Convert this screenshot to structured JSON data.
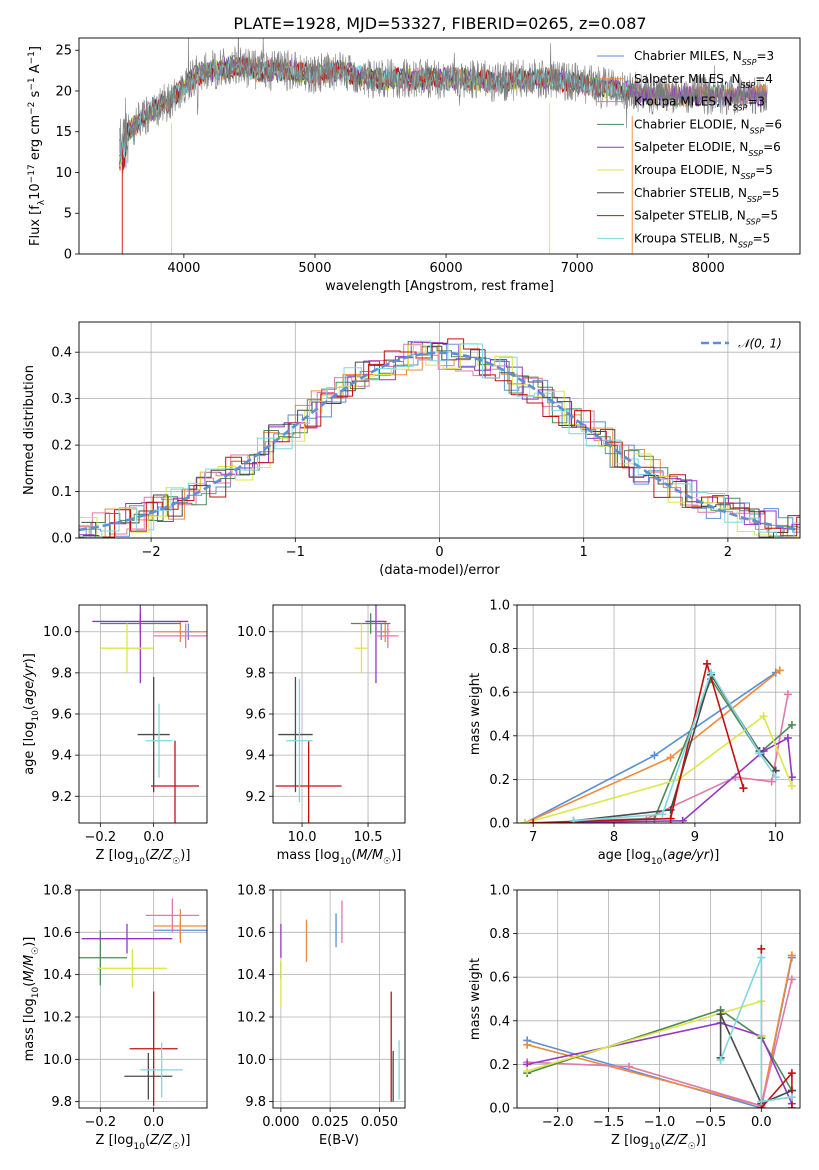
{
  "figure_title": "PLATE=1928, MJD=53327, FIBERID=0265, z=0.087",
  "colors": {
    "Chabrier MILES": "#5b8fd6",
    "Salpeter MILES": "#f08a3c",
    "Kroupa MILES": "#e07aa9",
    "Chabrier ELODIE": "#4f8a55",
    "Salpeter ELODIE": "#9437c8",
    "Kroupa ELODIE": "#dde64a",
    "Chabrier STELIB": "#4a4a4a",
    "Salpeter STELIB": "#c41010",
    "Kroupa STELIB": "#7fd8e0",
    "data": "#808080",
    "gaussian": "#5b8fd6"
  },
  "chart_data": [
    {
      "id": "spectrum",
      "type": "line",
      "title": "PLATE=1928, MJD=53327, FIBERID=0265, z=0.087",
      "xlabel": "wavelength [Angstrom, rest frame]",
      "ylabel": "Flux [f_λ10⁻¹⁷ erg cm⁻² s⁻¹ A⁻¹]",
      "xlim": [
        3200,
        8700
      ],
      "ylim": [
        0,
        26.5
      ],
      "xticks": [
        4000,
        5000,
        6000,
        7000,
        8000
      ],
      "yticks": [
        0,
        5,
        10,
        15,
        20,
        25
      ],
      "grid": false,
      "legend_position": "top-right",
      "data_curve": {
        "x": [
          3510,
          3600,
          3700,
          3800,
          3900,
          4000,
          4100,
          4200,
          4400,
          4600,
          4800,
          5000,
          5200,
          5400,
          5600,
          5800,
          6000,
          6200,
          6400,
          6600,
          6800,
          7000,
          7200,
          7400,
          7600,
          7800,
          8000,
          8200,
          8400,
          8700
        ],
        "y": [
          14,
          15.5,
          17,
          18,
          19,
          20.5,
          22,
          22.5,
          23,
          22.5,
          22.5,
          22,
          22.5,
          21.5,
          21.5,
          21.5,
          21.5,
          21.5,
          21,
          21.5,
          21.5,
          21,
          20.5,
          20,
          19.5,
          19.5,
          19.5,
          19.5,
          19.5,
          19.5
        ]
      },
      "series": [
        {
          "name": "Chabrier MILES, N_SSP=3",
          "label_main": "Chabrier MILES, N",
          "label_sub": "SSP",
          "label_end": "=3",
          "color_key": "Chabrier MILES"
        },
        {
          "name": "Salpeter MILES, N_SSP=4",
          "label_main": "Salpeter MILES, N",
          "label_sub": "SSP",
          "label_end": "=4",
          "color_key": "Salpeter MILES"
        },
        {
          "name": "Kroupa MILES, N_SSP=3",
          "label_main": "Kroupa MILES, N",
          "label_sub": "SSP",
          "label_end": "=3",
          "color_key": "Kroupa MILES"
        },
        {
          "name": "Chabrier ELODIE, N_SSP=6",
          "label_main": "Chabrier ELODIE, N",
          "label_sub": "SSP",
          "label_end": "=6",
          "color_key": "Chabrier ELODIE"
        },
        {
          "name": "Salpeter ELODIE, N_SSP=6",
          "label_main": "Salpeter ELODIE, N",
          "label_sub": "SSP",
          "label_end": "=6",
          "color_key": "Salpeter ELODIE"
        },
        {
          "name": "Kroupa ELODIE, N_SSP=5",
          "label_main": "Kroupa ELODIE, N",
          "label_sub": "SSP",
          "label_end": "=5",
          "color_key": "Kroupa ELODIE"
        },
        {
          "name": "Chabrier STELIB, N_SSP=5",
          "label_main": "Chabrier STELIB, N",
          "label_sub": "SSP",
          "label_end": "=5",
          "color_key": "Chabrier STELIB"
        },
        {
          "name": "Salpeter STELIB, N_SSP=5",
          "label_main": "Salpeter STELIB, N",
          "label_sub": "SSP",
          "label_end": "=5",
          "color_key": "Salpeter STELIB"
        },
        {
          "name": "Kroupa STELIB, N_SSP=5",
          "label_main": "Kroupa STELIB, N",
          "label_sub": "SSP",
          "label_end": "=5",
          "color_key": "Kroupa STELIB"
        }
      ]
    },
    {
      "id": "residuals",
      "type": "line",
      "xlabel": "(data-model)/error",
      "ylabel": "Normed distribution",
      "xlim": [
        -2.5,
        2.5
      ],
      "ylim": [
        0,
        0.465
      ],
      "xticks": [
        -2,
        -1,
        0,
        1,
        2
      ],
      "xtick_labels": [
        "−2",
        "−1",
        "0",
        "1",
        "2"
      ],
      "yticks": [
        0,
        0.1,
        0.2,
        0.3,
        0.4
      ],
      "ytick_labels": [
        "0.0",
        "0.1",
        "0.2",
        "0.3",
        "0.4"
      ],
      "grid": true,
      "legend": "𝒩(0, 1)",
      "legend_position": "top-right",
      "gaussian": {
        "mean": 0,
        "sigma": 1
      }
    },
    {
      "id": "age_vs_Z",
      "type": "scatter",
      "xlabel": "Z [log10(Z/Z☉)]",
      "ylabel": "age [log10(age/yr)]",
      "xlim": [
        -0.28,
        0.2
      ],
      "ylim": [
        9.07,
        10.13
      ],
      "xticks": [
        -0.2,
        0.0
      ],
      "xtick_labels": [
        "−0.2",
        "0.0"
      ],
      "yticks": [
        9.2,
        9.4,
        9.6,
        9.8,
        10.0
      ],
      "ytick_labels": [
        "9.2",
        "9.4",
        "9.6",
        "9.8",
        "10.0"
      ],
      "grid": true,
      "points": [
        {
          "key": "Chabrier MILES",
          "x": 0.13,
          "y": 10.0,
          "xerr": 0.04,
          "yerr": 0.04
        },
        {
          "key": "Salpeter MILES",
          "x": 0.1,
          "y": 10.0,
          "xerr": 0.1,
          "yerr": 0.05
        },
        {
          "key": "Kroupa MILES",
          "x": 0.12,
          "y": 9.98,
          "xerr": 0.12,
          "yerr": 0.06
        },
        {
          "key": "Chabrier ELODIE",
          "x": -0.05,
          "y": 10.04,
          "xerr": 0.15,
          "yerr": 0.05
        },
        {
          "key": "Salpeter ELODIE",
          "x": -0.05,
          "y": 10.05,
          "xerr": 0.18,
          "yerr": 0.3
        },
        {
          "key": "Kroupa ELODIE",
          "x": -0.1,
          "y": 9.92,
          "xerr": 0.1,
          "yerr": 0.12
        },
        {
          "key": "Chabrier STELIB",
          "x": 0.0,
          "y": 9.5,
          "xerr": 0.06,
          "yerr": 0.28
        },
        {
          "key": "Salpeter STELIB",
          "x": 0.08,
          "y": 9.25,
          "xerr": 0.09,
          "yerr": 0.22
        },
        {
          "key": "Kroupa STELIB",
          "x": 0.02,
          "y": 9.47,
          "xerr": 0.05,
          "yerr": 0.18
        }
      ]
    },
    {
      "id": "age_vs_mass",
      "type": "scatter",
      "xlabel": "mass [log10(M/M☉)]",
      "ylabel": "",
      "xlim": [
        9.78,
        10.78
      ],
      "ylim": [
        9.07,
        10.13
      ],
      "xticks": [
        10.0,
        10.5
      ],
      "xtick_labels": [
        "10.0",
        "10.5"
      ],
      "yticks": [
        9.2,
        9.4,
        9.6,
        9.8,
        10.0
      ],
      "ytick_labels": [
        "9.2",
        "9.4",
        "9.6",
        "9.8",
        "10.0"
      ],
      "grid": true,
      "points": [
        {
          "key": "Chabrier MILES",
          "x": 10.6,
          "y": 10.0,
          "xerr": 0.03,
          "yerr": 0.04
        },
        {
          "key": "Salpeter MILES",
          "x": 10.63,
          "y": 10.0,
          "xerr": 0.04,
          "yerr": 0.05
        },
        {
          "key": "Kroupa MILES",
          "x": 10.65,
          "y": 9.98,
          "xerr": 0.08,
          "yerr": 0.06
        },
        {
          "key": "Chabrier ELODIE",
          "x": 10.52,
          "y": 10.04,
          "xerr": 0.15,
          "yerr": 0.05
        },
        {
          "key": "Salpeter ELODIE",
          "x": 10.56,
          "y": 10.05,
          "xerr": 0.08,
          "yerr": 0.3
        },
        {
          "key": "Kroupa ELODIE",
          "x": 10.45,
          "y": 9.92,
          "xerr": 0.05,
          "yerr": 0.12
        },
        {
          "key": "Chabrier STELIB",
          "x": 9.95,
          "y": 9.5,
          "xerr": 0.13,
          "yerr": 0.28
        },
        {
          "key": "Salpeter STELIB",
          "x": 10.05,
          "y": 9.25,
          "xerr": 0.25,
          "yerr": 0.22
        },
        {
          "key": "Kroupa STELIB",
          "x": 9.98,
          "y": 9.47,
          "xerr": 0.1,
          "yerr": 0.3
        }
      ]
    },
    {
      "id": "weight_vs_age",
      "type": "line",
      "xlabel": "age [log10(age/yr)]",
      "ylabel": "mass weight",
      "xlim": [
        6.8,
        10.3
      ],
      "ylim": [
        0,
        1.0
      ],
      "xticks": [
        7,
        8,
        9,
        10
      ],
      "yticks": [
        0,
        0.2,
        0.4,
        0.6,
        0.8,
        1.0
      ],
      "ytick_labels": [
        "0.0",
        "0.2",
        "0.4",
        "0.6",
        "0.8",
        "1.0"
      ],
      "grid": true,
      "series": [
        {
          "key": "Chabrier MILES",
          "x": [
            6.9,
            8.5,
            10.0
          ],
          "y": [
            0.0,
            0.31,
            0.69
          ]
        },
        {
          "key": "Salpeter MILES",
          "x": [
            6.9,
            8.7,
            10.05
          ],
          "y": [
            0.0,
            0.3,
            0.7
          ]
        },
        {
          "key": "Kroupa MILES",
          "x": [
            6.9,
            8.4,
            9.5,
            9.95,
            10.15
          ],
          "y": [
            0.0,
            0.02,
            0.21,
            0.19,
            0.59
          ]
        },
        {
          "key": "Chabrier ELODIE",
          "x": [
            7.0,
            8.5,
            9.2,
            9.8,
            10.2
          ],
          "y": [
            0.0,
            0.02,
            0.66,
            0.32,
            0.45
          ]
        },
        {
          "key": "Salpeter ELODIE",
          "x": [
            7.0,
            8.85,
            9.85,
            10.15,
            10.2
          ],
          "y": [
            0.0,
            0.01,
            0.33,
            0.39,
            0.21
          ]
        },
        {
          "key": "Kroupa ELODIE",
          "x": [
            6.9,
            8.8,
            9.85,
            10.2
          ],
          "y": [
            0.0,
            0.2,
            0.49,
            0.17
          ]
        },
        {
          "key": "Chabrier STELIB",
          "x": [
            7.5,
            8.7,
            9.2,
            9.8,
            10.0
          ],
          "y": [
            0.01,
            0.06,
            0.68,
            0.33,
            0.24
          ]
        },
        {
          "key": "Salpeter STELIB",
          "x": [
            7.0,
            8.7,
            9.15,
            9.6
          ],
          "y": [
            0.0,
            0.02,
            0.73,
            0.16
          ]
        },
        {
          "key": "Kroupa STELIB",
          "x": [
            7.5,
            8.6,
            9.2,
            9.8,
            10.0
          ],
          "y": [
            0.01,
            0.04,
            0.69,
            0.32,
            0.21
          ]
        }
      ]
    },
    {
      "id": "mass_vs_Z",
      "type": "scatter",
      "xlabel": "Z [log10(Z/Z☉)]",
      "ylabel": "mass [log10(M/M☉)]",
      "xlim": [
        -0.28,
        0.2
      ],
      "ylim": [
        9.77,
        10.8
      ],
      "xticks": [
        -0.2,
        0.0
      ],
      "xtick_labels": [
        "−0.2",
        "0.0"
      ],
      "yticks": [
        9.8,
        10.0,
        10.2,
        10.4,
        10.6,
        10.8
      ],
      "ytick_labels": [
        "9.8",
        "10.0",
        "10.2",
        "10.4",
        "10.6",
        "10.8"
      ],
      "grid": true,
      "points": [
        {
          "key": "Chabrier MILES",
          "x": 0.1,
          "y": 10.61,
          "xerr": 0.1,
          "yerr": 0.04
        },
        {
          "key": "Salpeter MILES",
          "x": 0.1,
          "y": 10.63,
          "xerr": 0.1,
          "yerr": 0.08
        },
        {
          "key": "Kroupa MILES",
          "x": 0.07,
          "y": 10.68,
          "xerr": 0.1,
          "yerr": 0.08
        },
        {
          "key": "Chabrier ELODIE",
          "x": -0.2,
          "y": 10.48,
          "xerr": 0.1,
          "yerr": 0.13
        },
        {
          "key": "Salpeter ELODIE",
          "x": -0.1,
          "y": 10.57,
          "xerr": 0.17,
          "yerr": 0.07
        },
        {
          "key": "Kroupa ELODIE",
          "x": -0.08,
          "y": 10.43,
          "xerr": 0.13,
          "yerr": 0.09
        },
        {
          "key": "Chabrier STELIB",
          "x": -0.02,
          "y": 9.92,
          "xerr": 0.09,
          "yerr": 0.11
        },
        {
          "key": "Salpeter STELIB",
          "x": 0.0,
          "y": 10.05,
          "xerr": 0.09,
          "yerr": 0.27
        },
        {
          "key": "Kroupa STELIB",
          "x": 0.03,
          "y": 9.95,
          "xerr": 0.08,
          "yerr": 0.13
        }
      ]
    },
    {
      "id": "mass_vs_ebv",
      "type": "scatter",
      "xlabel": "E(B-V)",
      "ylabel": "",
      "xlim": [
        -0.004,
        0.063
      ],
      "ylim": [
        9.77,
        10.8
      ],
      "xticks": [
        0.0,
        0.025,
        0.05
      ],
      "xtick_labels": [
        "0.000",
        "0.025",
        "0.050"
      ],
      "yticks": [
        9.8,
        10.0,
        10.2,
        10.4,
        10.6,
        10.8
      ],
      "ytick_labels": [
        "9.8",
        "10.0",
        "10.2",
        "10.4",
        "10.6",
        "10.8"
      ],
      "grid": true,
      "points": [
        {
          "key": "Chabrier MILES",
          "x": 0.028,
          "y": 10.61,
          "xerr": 0,
          "yerr": 0.08
        },
        {
          "key": "Salpeter MILES",
          "x": 0.013,
          "y": 10.56,
          "xerr": 0,
          "yerr": 0.1
        },
        {
          "key": "Kroupa MILES",
          "x": 0.031,
          "y": 10.65,
          "xerr": 0,
          "yerr": 0.1
        },
        {
          "key": "Chabrier ELODIE",
          "x": 0.0,
          "y": 10.42,
          "xerr": 0,
          "yerr": 0.04
        },
        {
          "key": "Salpeter ELODIE",
          "x": 0.0,
          "y": 10.56,
          "xerr": 0,
          "yerr": 0.08
        },
        {
          "key": "Kroupa ELODIE",
          "x": 0.0,
          "y": 10.36,
          "xerr": 0,
          "yerr": 0.11
        },
        {
          "key": "Chabrier STELIB",
          "x": 0.057,
          "y": 9.92,
          "xerr": 0,
          "yerr": 0.12
        },
        {
          "key": "Salpeter STELIB",
          "x": 0.056,
          "y": 10.06,
          "xerr": 0,
          "yerr": 0.26
        },
        {
          "key": "Kroupa STELIB",
          "x": 0.06,
          "y": 9.95,
          "xerr": 0,
          "yerr": 0.14
        }
      ]
    },
    {
      "id": "weight_vs_Z",
      "type": "line",
      "xlabel": "Z [log10(Z/Z☉)]",
      "ylabel": "mass weight",
      "xlim": [
        -2.4,
        0.38
      ],
      "ylim": [
        0,
        1.0
      ],
      "xticks": [
        -2.0,
        -1.5,
        -1.0,
        -0.5,
        0.0
      ],
      "xtick_labels": [
        "−2.0",
        "−1.5",
        "−1.0",
        "−0.5",
        "0.0"
      ],
      "yticks": [
        0,
        0.2,
        0.4,
        0.6,
        0.8,
        1.0
      ],
      "ytick_labels": [
        "0.0",
        "0.2",
        "0.4",
        "0.6",
        "0.8",
        "1.0"
      ],
      "grid": true,
      "series": [
        {
          "key": "Chabrier MILES",
          "x": [
            -2.3,
            0.0,
            0.3
          ],
          "y": [
            0.31,
            0.0,
            0.69
          ]
        },
        {
          "key": "Salpeter MILES",
          "x": [
            -2.3,
            0.0,
            0.3
          ],
          "y": [
            0.29,
            0.01,
            0.7
          ]
        },
        {
          "key": "Kroupa MILES",
          "x": [
            -2.3,
            -1.3,
            0.0,
            0.3
          ],
          "y": [
            0.21,
            0.19,
            0.01,
            0.59
          ]
        },
        {
          "key": "Chabrier ELODIE",
          "x": [
            -2.3,
            -0.4,
            0.0,
            0.3
          ],
          "y": [
            0.16,
            0.45,
            0.32,
            0.08
          ]
        },
        {
          "key": "Salpeter ELODIE",
          "x": [
            -2.3,
            -0.4,
            0.0,
            0.3
          ],
          "y": [
            0.2,
            0.39,
            0.33,
            0.02
          ]
        },
        {
          "key": "Kroupa ELODIE",
          "x": [
            -2.3,
            0.0,
            0.0
          ],
          "y": [
            0.17,
            0.49,
            0.33
          ]
        },
        {
          "key": "Chabrier STELIB",
          "x": [
            -0.4,
            -0.4,
            0.0,
            0.3
          ],
          "y": [
            0.23,
            0.43,
            0.02,
            0.08
          ]
        },
        {
          "key": "Salpeter STELIB",
          "x": [
            0.0,
            0.0,
            0.3,
            0.3
          ],
          "y": [
            0.73,
            0.0,
            0.16,
            0.0
          ]
        },
        {
          "key": "Kroupa STELIB",
          "x": [
            -0.4,
            0.0,
            0.0,
            0.3
          ],
          "y": [
            0.22,
            0.69,
            0.03,
            0.05
          ]
        }
      ]
    }
  ]
}
